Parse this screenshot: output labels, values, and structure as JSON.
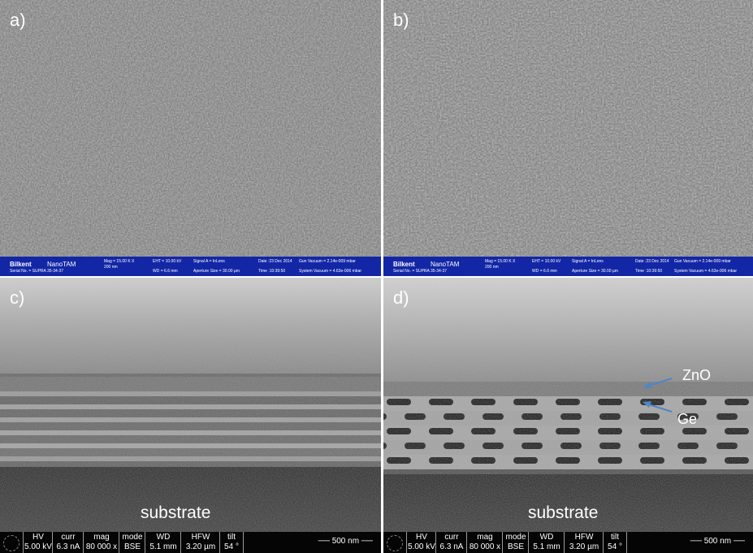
{
  "panels": {
    "a": {
      "label": "a)"
    },
    "b": {
      "label": "b)"
    },
    "c": {
      "label": "c)",
      "substrate": "substrate"
    },
    "d": {
      "label": "d)",
      "substrate": "substrate",
      "zno": "ZnO",
      "ge": "Ge"
    }
  },
  "infobar": {
    "brand": "Bilkent",
    "brand2": "NanoTAM",
    "serial": "Serial No. = SUPRA 35-34-37",
    "mag": "Mag = 15.00 K X",
    "scale": "200 nm",
    "eht": "EHT = 10.00 kV",
    "wd": "WD = 6.6 mm",
    "signal": "Signal A = InLens",
    "aperture": "Aperture Size = 30.00 µm",
    "date": "Date :23 Dec 2014",
    "time": "Time :10:39:50",
    "gun": "Gun Vacuum = 2.14e-009 mbar",
    "sys": "System Vacuum = 4.63e-006 mbar"
  },
  "databar": {
    "hv_h": "HV",
    "hv_v": "5.00 kV",
    "curr_h": "curr",
    "curr_v": "6.3 nA",
    "mag_h": "mag",
    "mag_v": "80 000 x",
    "mode_h": "mode",
    "mode_v": "BSE",
    "wd_h": "WD",
    "wd_v": "5.1 mm",
    "hfw_h": "HFW",
    "hfw_v": "3.20 µm",
    "tilt_h": "tilt",
    "tilt_v": "54 °",
    "scale": "500 nm"
  },
  "colors": {
    "sem_bar": "#1327a6",
    "data_bar": "#050505",
    "arrow": "#4f86c6"
  }
}
